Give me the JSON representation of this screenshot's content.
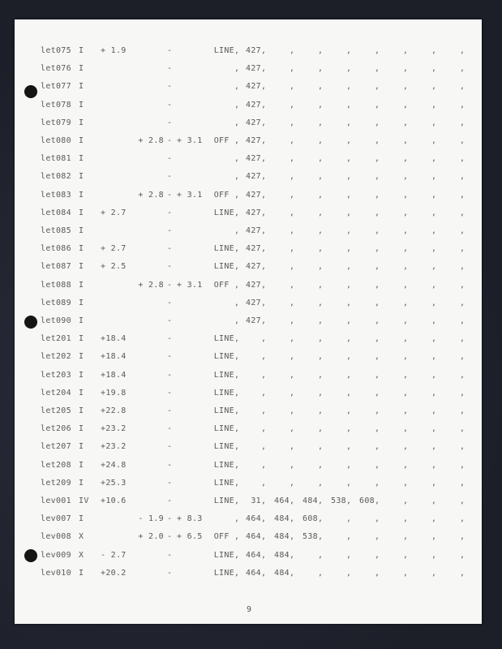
{
  "rows": [
    {
      "name": "let075",
      "cls": "I",
      "val": "+ 1.9",
      "lo": "",
      "hi": "",
      "mode": "LINE",
      "slots": [
        "427",
        "",
        "",
        "",
        "",
        "",
        "",
        ""
      ]
    },
    {
      "name": "let076",
      "cls": "I",
      "val": "",
      "lo": "",
      "hi": "",
      "mode": "",
      "slots": [
        "427",
        "",
        "",
        "",
        "",
        "",
        "",
        ""
      ]
    },
    {
      "name": "let077",
      "cls": "I",
      "val": "",
      "lo": "",
      "hi": "",
      "mode": "",
      "slots": [
        "427",
        "",
        "",
        "",
        "",
        "",
        "",
        ""
      ]
    },
    {
      "name": "let078",
      "cls": "I",
      "val": "",
      "lo": "",
      "hi": "",
      "mode": "",
      "slots": [
        "427",
        "",
        "",
        "",
        "",
        "",
        "",
        ""
      ]
    },
    {
      "name": "let079",
      "cls": "I",
      "val": "",
      "lo": "",
      "hi": "",
      "mode": "",
      "slots": [
        "427",
        "",
        "",
        "",
        "",
        "",
        "",
        ""
      ]
    },
    {
      "name": "let080",
      "cls": "I",
      "val": "",
      "lo": "+ 2.8",
      "hi": "+ 3.1",
      "mode": "OFF ",
      "slots": [
        "427",
        "",
        "",
        "",
        "",
        "",
        "",
        ""
      ]
    },
    {
      "name": "let081",
      "cls": "I",
      "val": "",
      "lo": "",
      "hi": "",
      "mode": "",
      "slots": [
        "427",
        "",
        "",
        "",
        "",
        "",
        "",
        ""
      ]
    },
    {
      "name": "let082",
      "cls": "I",
      "val": "",
      "lo": "",
      "hi": "",
      "mode": "",
      "slots": [
        "427",
        "",
        "",
        "",
        "",
        "",
        "",
        ""
      ]
    },
    {
      "name": "let083",
      "cls": "I",
      "val": "",
      "lo": "+ 2.8",
      "hi": "+ 3.1",
      "mode": "OFF ",
      "slots": [
        "427",
        "",
        "",
        "",
        "",
        "",
        "",
        ""
      ]
    },
    {
      "name": "let084",
      "cls": "I",
      "val": "+ 2.7",
      "lo": "",
      "hi": "",
      "mode": "LINE",
      "slots": [
        "427",
        "",
        "",
        "",
        "",
        "",
        "",
        ""
      ]
    },
    {
      "name": "let085",
      "cls": "I",
      "val": "",
      "lo": "",
      "hi": "",
      "mode": "",
      "slots": [
        "427",
        "",
        "",
        "",
        "",
        "",
        "",
        ""
      ]
    },
    {
      "name": "let086",
      "cls": "I",
      "val": "+ 2.7",
      "lo": "",
      "hi": "",
      "mode": "LINE",
      "slots": [
        "427",
        "",
        "",
        "",
        "",
        "",
        "",
        ""
      ]
    },
    {
      "name": "let087",
      "cls": "I",
      "val": "+ 2.5",
      "lo": "",
      "hi": "",
      "mode": "LINE",
      "slots": [
        "427",
        "",
        "",
        "",
        "",
        "",
        "",
        ""
      ]
    },
    {
      "name": "let088",
      "cls": "I",
      "val": "",
      "lo": "+ 2.8",
      "hi": "+ 3.1",
      "mode": "OFF ",
      "slots": [
        "427",
        "",
        "",
        "",
        "",
        "",
        "",
        ""
      ]
    },
    {
      "name": "let089",
      "cls": "I",
      "val": "",
      "lo": "",
      "hi": "",
      "mode": "",
      "slots": [
        "427",
        "",
        "",
        "",
        "",
        "",
        "",
        ""
      ]
    },
    {
      "name": "let090",
      "cls": "I",
      "val": "",
      "lo": "",
      "hi": "",
      "mode": "",
      "slots": [
        "427",
        "",
        "",
        "",
        "",
        "",
        "",
        ""
      ]
    },
    {
      "name": "let201",
      "cls": "I",
      "val": "+18.4",
      "lo": "",
      "hi": "",
      "mode": "LINE",
      "slots": [
        "",
        "",
        "",
        "",
        "",
        "",
        "",
        ""
      ]
    },
    {
      "name": "let202",
      "cls": "I",
      "val": "+18.4",
      "lo": "",
      "hi": "",
      "mode": "LINE",
      "slots": [
        "",
        "",
        "",
        "",
        "",
        "",
        "",
        ""
      ]
    },
    {
      "name": "let203",
      "cls": "I",
      "val": "+18.4",
      "lo": "",
      "hi": "",
      "mode": "LINE",
      "slots": [
        "",
        "",
        "",
        "",
        "",
        "",
        "",
        ""
      ]
    },
    {
      "name": "let204",
      "cls": "I",
      "val": "+19.8",
      "lo": "",
      "hi": "",
      "mode": "LINE",
      "slots": [
        "",
        "",
        "",
        "",
        "",
        "",
        "",
        ""
      ]
    },
    {
      "name": "let205",
      "cls": "I",
      "val": "+22.8",
      "lo": "",
      "hi": "",
      "mode": "LINE",
      "slots": [
        "",
        "",
        "",
        "",
        "",
        "",
        "",
        ""
      ]
    },
    {
      "name": "let206",
      "cls": "I",
      "val": "+23.2",
      "lo": "",
      "hi": "",
      "mode": "LINE",
      "slots": [
        "",
        "",
        "",
        "",
        "",
        "",
        "",
        ""
      ]
    },
    {
      "name": "let207",
      "cls": "I",
      "val": "+23.2",
      "lo": "",
      "hi": "",
      "mode": "LINE",
      "slots": [
        "",
        "",
        "",
        "",
        "",
        "",
        "",
        ""
      ]
    },
    {
      "name": "let208",
      "cls": "I",
      "val": "+24.8",
      "lo": "",
      "hi": "",
      "mode": "LINE",
      "slots": [
        "",
        "",
        "",
        "",
        "",
        "",
        "",
        ""
      ]
    },
    {
      "name": "let209",
      "cls": "I",
      "val": "+25.3",
      "lo": "",
      "hi": "",
      "mode": "LINE",
      "slots": [
        "",
        "",
        "",
        "",
        "",
        "",
        "",
        ""
      ]
    },
    {
      "name": "lev001",
      "cls": "IV",
      "val": "+10.6",
      "lo": "",
      "hi": "",
      "mode": "LINE",
      "slots": [
        "31",
        "464",
        "484",
        "538",
        "608",
        "",
        "",
        ""
      ]
    },
    {
      "name": "lev007",
      "cls": "I",
      "val": "",
      "lo": "- 1.9",
      "hi": "+ 8.3",
      "mode": "",
      "slots": [
        "464",
        "484",
        "608",
        "",
        "",
        "",
        "",
        ""
      ]
    },
    {
      "name": "lev008",
      "cls": "X",
      "val": "",
      "lo": "+ 2.0",
      "hi": "+ 6.5",
      "mode": "OFF ",
      "slots": [
        "464",
        "484",
        "538",
        "",
        "",
        "",
        "",
        ""
      ]
    },
    {
      "name": "lev009",
      "cls": "X",
      "val": "- 2.7",
      "lo": "",
      "hi": "",
      "mode": "LINE",
      "slots": [
        "464",
        "484",
        "",
        "",
        "",
        "",
        "",
        ""
      ]
    },
    {
      "name": "lev010",
      "cls": "I",
      "val": "+20.2",
      "lo": "",
      "hi": "",
      "mode": "LINE",
      "slots": [
        "464",
        "484",
        "",
        "",
        "",
        "",
        "",
        ""
      ]
    }
  ],
  "range_separator": "-",
  "field_separator": ",",
  "page_number": "9"
}
